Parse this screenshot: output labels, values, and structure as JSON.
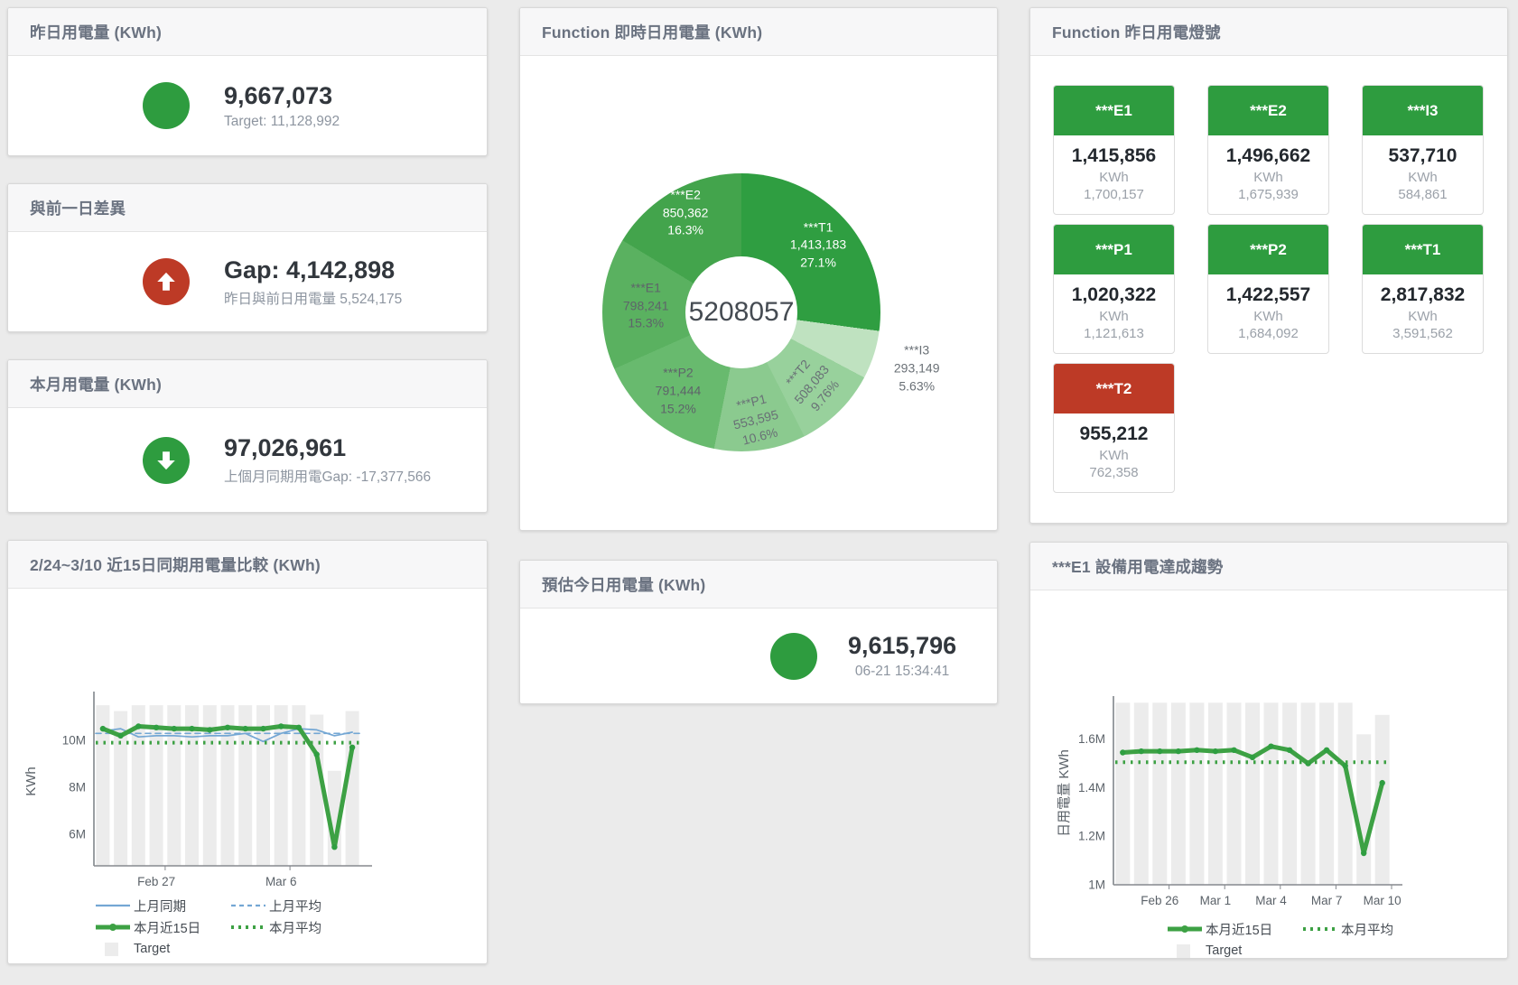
{
  "colors": {
    "green": "#2e9c3f",
    "red": "#bd3a26",
    "blue": "#74a7d4",
    "line_green": "#3da144",
    "bar": "#ececec"
  },
  "panels": {
    "yesterday": {
      "title": "昨日用電量 (KWh)",
      "value": "9,667,073",
      "subtitle": "Target: 11,128,992"
    },
    "diff": {
      "title": "與前一日差異",
      "value": "Gap: 4,142,898",
      "subtitle": "昨日與前日用電量 5,524,175"
    },
    "month": {
      "title": "本月用電量 (KWh)",
      "value": "97,026,961",
      "subtitle": "上個月同期用電Gap: -17,377,566"
    },
    "compare": {
      "title": "2/24~3/10 近15日同期用電量比較 (KWh)"
    },
    "realtime": {
      "title": "Function 即時日用電量 (KWh)"
    },
    "estimate": {
      "title": "預估今日用電量 (KWh)",
      "value": "9,615,796",
      "subtitle": "06-21 15:34:41"
    },
    "lights": {
      "title": "Function 昨日用電燈號"
    },
    "trend": {
      "title": "***E1 設備用電達成趨勢"
    }
  },
  "lights_tiles": [
    {
      "label": "***E1",
      "value": "1,415,856",
      "unit": "KWh",
      "target": "1,700,157",
      "status": "green"
    },
    {
      "label": "***E2",
      "value": "1,496,662",
      "unit": "KWh",
      "target": "1,675,939",
      "status": "green"
    },
    {
      "label": "***I3",
      "value": "537,710",
      "unit": "KWh",
      "target": "584,861",
      "status": "green"
    },
    {
      "label": "***P1",
      "value": "1,020,322",
      "unit": "KWh",
      "target": "1,121,613",
      "status": "green"
    },
    {
      "label": "***P2",
      "value": "1,422,557",
      "unit": "KWh",
      "target": "1,684,092",
      "status": "green"
    },
    {
      "label": "***T1",
      "value": "2,817,832",
      "unit": "KWh",
      "target": "3,591,562",
      "status": "green"
    },
    {
      "label": "***T2",
      "value": "955,212",
      "unit": "KWh",
      "target": "762,358",
      "status": "red"
    }
  ],
  "chart_data": [
    {
      "type": "pie",
      "title": "Function 即時日用電量 (KWh)",
      "center_total": "5208057",
      "segments": [
        {
          "label": "***T1",
          "value": 1413183,
          "display": "1,413,183",
          "pct": "27.1%",
          "color": "#2f9e41",
          "text": "#ffffff"
        },
        {
          "label": "***I3",
          "value": 293149,
          "display": "293,149",
          "pct": "5.63%",
          "color": "#bfe2c0",
          "text": "#6a7076"
        },
        {
          "label": "***T2",
          "value": 508083,
          "display": "508,083",
          "pct": "9.76%",
          "color": "#98d19c",
          "text": "#697076"
        },
        {
          "label": "***P1",
          "value": 553595,
          "display": "553,595",
          "pct": "10.6%",
          "color": "#8bca8f",
          "text": "#697076"
        },
        {
          "label": "***P2",
          "value": 791444,
          "display": "791,444",
          "pct": "15.2%",
          "color": "#68ba6e",
          "text": "#5e646a"
        },
        {
          "label": "***E1",
          "value": 798241,
          "display": "798,241",
          "pct": "15.3%",
          "color": "#5ab160",
          "text": "#5e646a"
        },
        {
          "label": "***E2",
          "value": 850362,
          "display": "850,362",
          "pct": "16.3%",
          "color": "#43a44c",
          "text": "#ffffff"
        }
      ]
    },
    {
      "type": "bar",
      "title": "2/24~3/10 近15日同期用電量比較 (KWh)",
      "ylabel": "KWh",
      "ylim": [
        4.65,
        11.85
      ],
      "yticks": [
        {
          "v": 6,
          "label": "6M"
        },
        {
          "v": 8,
          "label": "8M"
        },
        {
          "v": 10,
          "label": "10M"
        }
      ],
      "xticks": [
        {
          "i": 3,
          "label": "Feb 27"
        },
        {
          "i": 10,
          "label": "Mar 6"
        }
      ],
      "bar_series": {
        "name": "Target",
        "color": "#ececec",
        "values": [
          11.5,
          11.25,
          11.5,
          11.5,
          11.5,
          11.5,
          11.5,
          11.5,
          11.5,
          11.5,
          11.5,
          11.5,
          11.1,
          8.7,
          11.25
        ]
      },
      "series": [
        {
          "name": "上月同期",
          "style": "line",
          "color": "#74a7d4",
          "values": [
            10.4,
            10.5,
            10.15,
            10.2,
            10.2,
            10.15,
            10.2,
            10.2,
            10.3,
            9.95,
            10.3,
            10.5,
            10.45,
            10.2,
            10.35
          ]
        },
        {
          "name": "上月平均",
          "style": "dashed",
          "color": "#74a7d4",
          "values": [
            10.3
          ]
        },
        {
          "name": "本月近15日",
          "style": "thick",
          "color": "#3da144",
          "dot": "#2f9e41",
          "values": [
            10.5,
            10.2,
            10.6,
            10.55,
            10.5,
            10.5,
            10.45,
            10.55,
            10.5,
            10.5,
            10.6,
            10.55,
            9.4,
            5.45,
            9.7
          ]
        },
        {
          "name": "本月平均",
          "style": "dotted",
          "color": "#3da144",
          "values": [
            9.9
          ]
        }
      ],
      "legend": [
        {
          "label": "上月同期",
          "swatch": "line",
          "color": "#74a7d4"
        },
        {
          "label": "上月平均",
          "swatch": "dashed",
          "color": "#74a7d4"
        },
        {
          "label": "本月近15日",
          "swatch": "thick",
          "color": "#3da144"
        },
        {
          "label": "本月平均",
          "swatch": "dotted",
          "color": "#3da144"
        },
        {
          "label": "Target",
          "swatch": "square",
          "color": "#ececec"
        }
      ]
    },
    {
      "type": "bar",
      "title": "***E1 設備用電達成趨勢",
      "ylabel": "日用電量 KWh",
      "ylim": [
        1.0,
        1.755
      ],
      "yticks": [
        {
          "v": 1,
          "label": "1M"
        },
        {
          "v": 1.2,
          "label": "1.2M"
        },
        {
          "v": 1.4,
          "label": "1.4M"
        },
        {
          "v": 1.6,
          "label": "1.6M"
        }
      ],
      "xticks": [
        {
          "i": 2,
          "label": "Feb 26"
        },
        {
          "i": 5,
          "label": "Mar 1"
        },
        {
          "i": 8,
          "label": "Mar 4"
        },
        {
          "i": 11,
          "label": "Mar 7"
        },
        {
          "i": 14,
          "label": "Mar 10"
        }
      ],
      "bar_series": {
        "name": "Target",
        "color": "#ececec",
        "values": [
          1.75,
          1.75,
          1.75,
          1.75,
          1.75,
          1.75,
          1.75,
          1.75,
          1.75,
          1.75,
          1.75,
          1.75,
          1.75,
          1.62,
          1.7
        ]
      },
      "series": [
        {
          "name": "本月近15日",
          "style": "thick",
          "color": "#3da144",
          "dot": "#2f9e41",
          "values": [
            1.545,
            1.55,
            1.55,
            1.55,
            1.555,
            1.55,
            1.555,
            1.525,
            1.57,
            1.555,
            1.5,
            1.555,
            1.49,
            1.13,
            1.42
          ]
        },
        {
          "name": "本月平均",
          "style": "dotted",
          "color": "#3da144",
          "values": [
            1.505
          ]
        }
      ],
      "legend": [
        {
          "label": "本月近15日",
          "swatch": "thick",
          "color": "#3da144"
        },
        {
          "label": "本月平均",
          "swatch": "dotted",
          "color": "#3da144"
        },
        {
          "label": "Target",
          "swatch": "square",
          "color": "#ececec"
        }
      ]
    }
  ]
}
